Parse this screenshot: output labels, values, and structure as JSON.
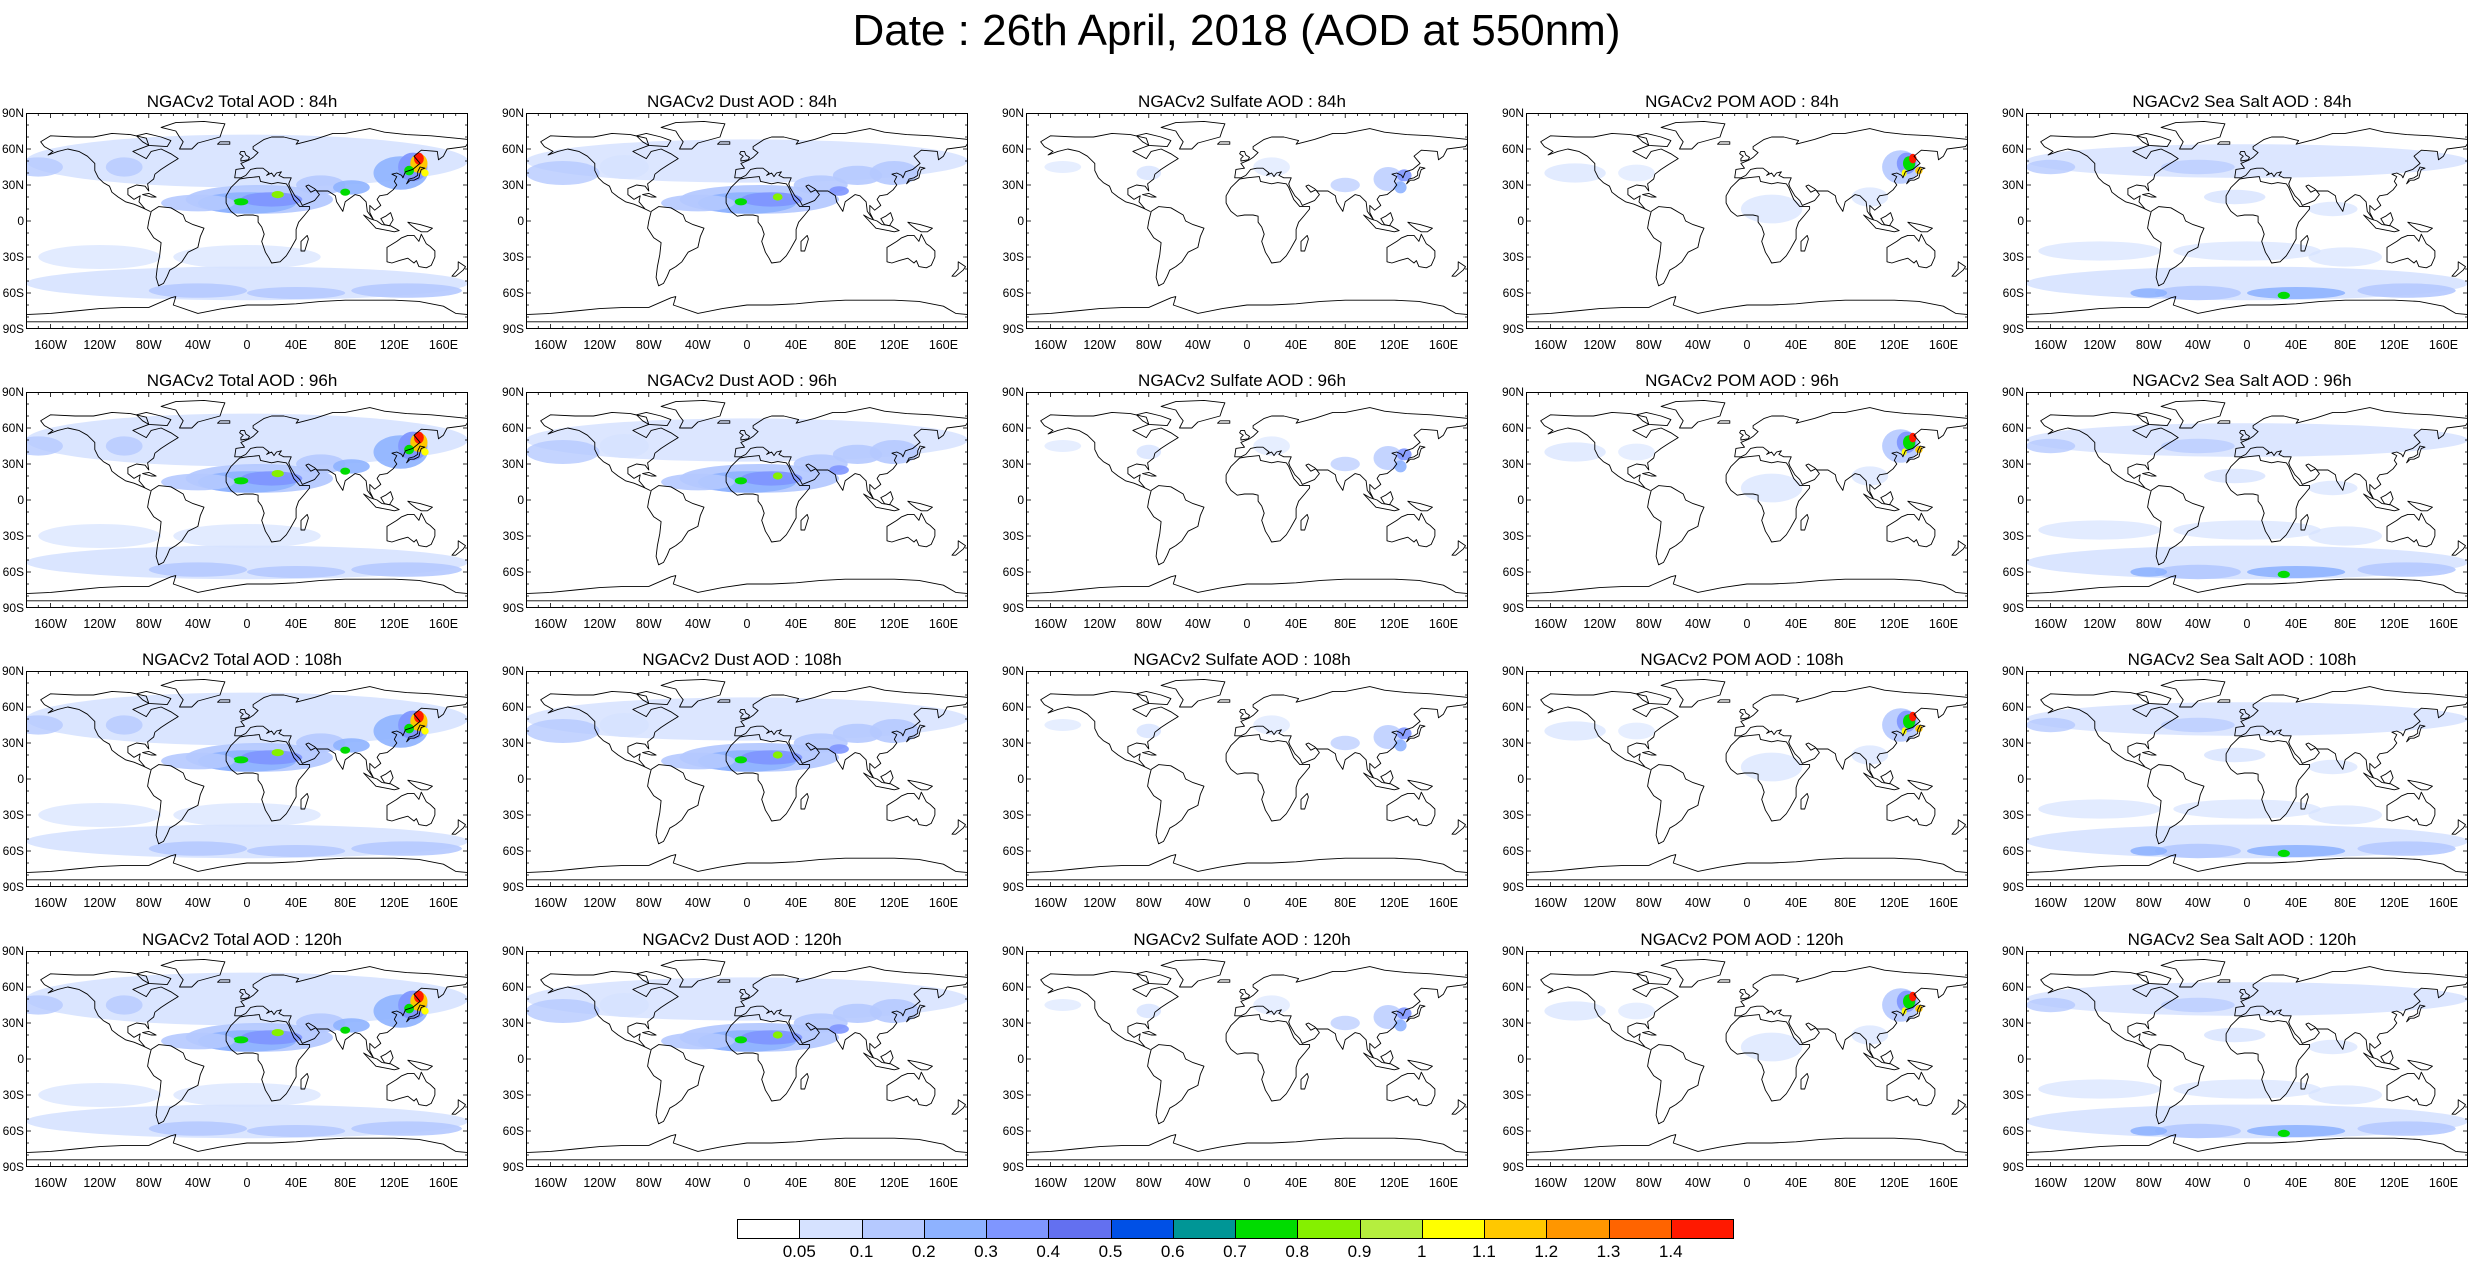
{
  "title": "Date : 26th April, 2018 (AOD at 550nm)",
  "lat_labels": [
    "90N",
    "60N",
    "30N",
    "0",
    "30S",
    "60S",
    "90S"
  ],
  "lon_labels": [
    "160W",
    "120W",
    "80W",
    "40W",
    "0",
    "40E",
    "80E",
    "120E",
    "160E"
  ],
  "panels": [
    {
      "title": "NGACv2 Total AOD : 84h",
      "type": "total"
    },
    {
      "title": "NGACv2 Dust AOD : 84h",
      "type": "dust"
    },
    {
      "title": "NGACv2 Sulfate AOD : 84h",
      "type": "sulfate"
    },
    {
      "title": "NGACv2 POM AOD : 84h",
      "type": "pom"
    },
    {
      "title": "NGACv2 Sea Salt AOD : 84h",
      "type": "seasalt"
    },
    {
      "title": "NGACv2 Total AOD : 96h",
      "type": "total"
    },
    {
      "title": "NGACv2 Dust AOD : 96h",
      "type": "dust"
    },
    {
      "title": "NGACv2 Sulfate AOD : 96h",
      "type": "sulfate"
    },
    {
      "title": "NGACv2 POM AOD : 96h",
      "type": "pom"
    },
    {
      "title": "NGACv2 Sea Salt AOD : 96h",
      "type": "seasalt"
    },
    {
      "title": "NGACv2 Total AOD : 108h",
      "type": "total"
    },
    {
      "title": "NGACv2 Dust AOD : 108h",
      "type": "dust"
    },
    {
      "title": "NGACv2 Sulfate AOD : 108h",
      "type": "sulfate"
    },
    {
      "title": "NGACv2 POM AOD : 108h",
      "type": "pom"
    },
    {
      "title": "NGACv2 Sea Salt AOD : 108h",
      "type": "seasalt"
    },
    {
      "title": "NGACv2 Total AOD : 120h",
      "type": "total"
    },
    {
      "title": "NGACv2 Dust AOD : 120h",
      "type": "dust"
    },
    {
      "title": "NGACv2 Sulfate AOD : 120h",
      "type": "sulfate"
    },
    {
      "title": "NGACv2 POM AOD : 120h",
      "type": "pom"
    },
    {
      "title": "NGACv2 Sea Salt  AOD : 120h",
      "type": "seasalt"
    }
  ],
  "legend": {
    "ticks": [
      "0.05",
      "0.1",
      "0.2",
      "0.3",
      "0.4",
      "0.5",
      "0.6",
      "0.7",
      "0.8",
      "0.9",
      "1",
      "1.1",
      "1.2",
      "1.3",
      "1.4"
    ],
    "colors": [
      "#ffffff",
      "#d6e2ff",
      "#b5c9ff",
      "#8eb2ff",
      "#7f96ff",
      "#6370f0",
      "#0050e6",
      "#009696",
      "#00dc00",
      "#85f000",
      "#b5ee3e",
      "#ffff00",
      "#ffc800",
      "#ff9600",
      "#ff6400",
      "#ff1900"
    ]
  },
  "colors": {
    "land_outline": "#000000",
    "background": "#ffffff"
  }
}
